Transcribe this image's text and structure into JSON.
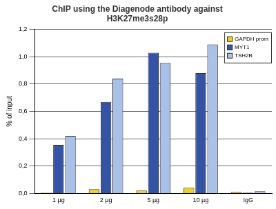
{
  "chart_data": {
    "type": "bar",
    "title": [
      "ChIP using the Diagenode antibody against",
      "H3K27me3s28p"
    ],
    "categories": [
      "1 µg",
      "2 µg",
      "5 µg",
      "10 µg",
      "IgG"
    ],
    "series": [
      {
        "name": "GAPDH prom",
        "color": "#f2d21b",
        "values": [
          0.005,
          0.03,
          0.02,
          0.04,
          0.01
        ]
      },
      {
        "name": "MYT1",
        "color": "#3353a6",
        "values": [
          0.355,
          0.67,
          1.03,
          0.88,
          0.005
        ]
      },
      {
        "name": "TSH2B",
        "color": "#a9c1e9",
        "values": [
          0.42,
          0.84,
          0.955,
          1.09,
          0.015
        ]
      }
    ],
    "ylabel": "% of input",
    "ylim": [
      0,
      1.2
    ],
    "yticks": [
      {
        "value": 0,
        "label": "0,0"
      },
      {
        "value": 0.2,
        "label": "0,2"
      },
      {
        "value": 0.4,
        "label": "0,4"
      },
      {
        "value": 0.6,
        "label": "0,6"
      },
      {
        "value": 0.8,
        "label": "0,8"
      },
      {
        "value": 1.0,
        "label": "1,0"
      },
      {
        "value": 1.2,
        "label": "1,2"
      }
    ],
    "grid": true,
    "legend": "upper right"
  }
}
